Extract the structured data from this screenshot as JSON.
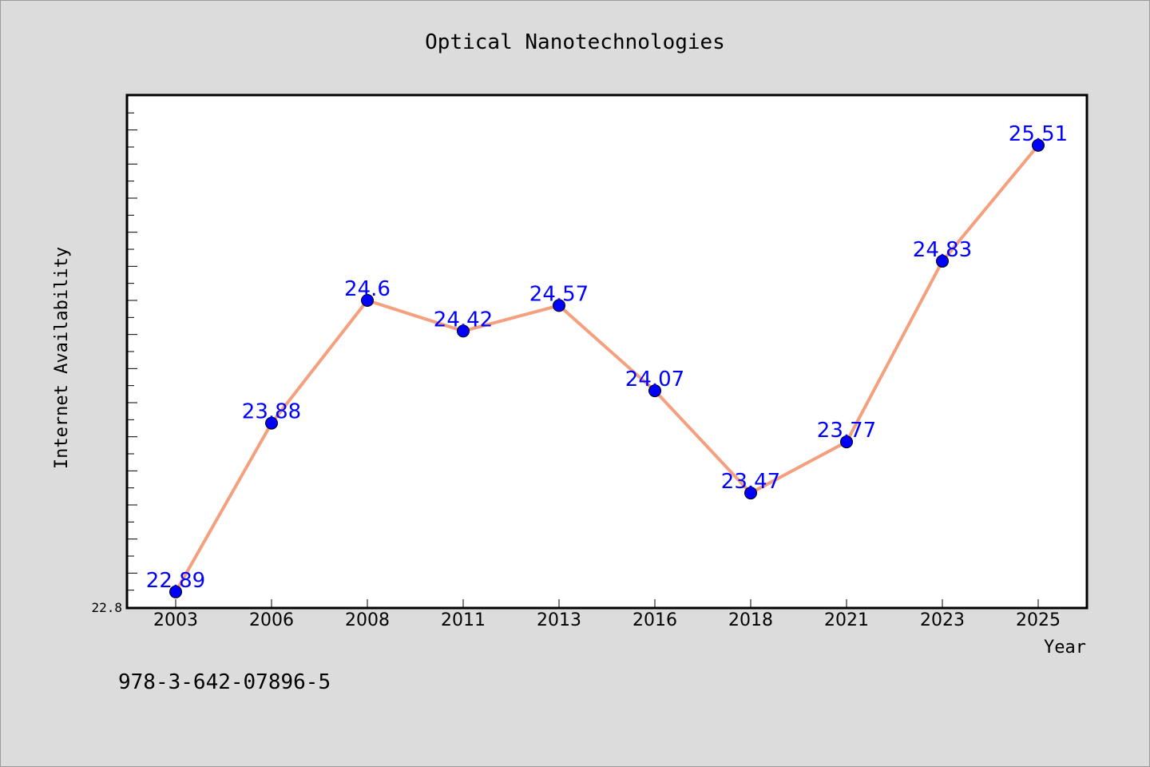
{
  "chart_data": {
    "type": "line",
    "title": "Optical Nanotechnologies",
    "xlabel": "Year",
    "ylabel": "Internet Availability",
    "categories": [
      "2003",
      "2006",
      "2008",
      "2011",
      "2013",
      "2016",
      "2018",
      "2021",
      "2023",
      "2025"
    ],
    "series": [
      {
        "values": [
          22.89,
          23.88,
          24.6,
          24.42,
          24.57,
          24.07,
          23.47,
          23.77,
          24.83,
          25.51
        ],
        "labels": [
          "22.89",
          "23.88",
          "24.6",
          "24.42",
          "24.57",
          "24.07",
          "23.47",
          "23.77",
          "24.83",
          "25.51"
        ]
      }
    ],
    "ylim": [
      22.8,
      25.8
    ],
    "y_tick_labels": [
      "22.8"
    ],
    "grid": false,
    "colors": {
      "line": "#f4a07e",
      "marker": "#0000ff",
      "data_label": "#0000ff",
      "plot_background": "#ffffff",
      "page_background": "#dcdcdc"
    }
  },
  "footnote": "978-3-642-07896-5"
}
